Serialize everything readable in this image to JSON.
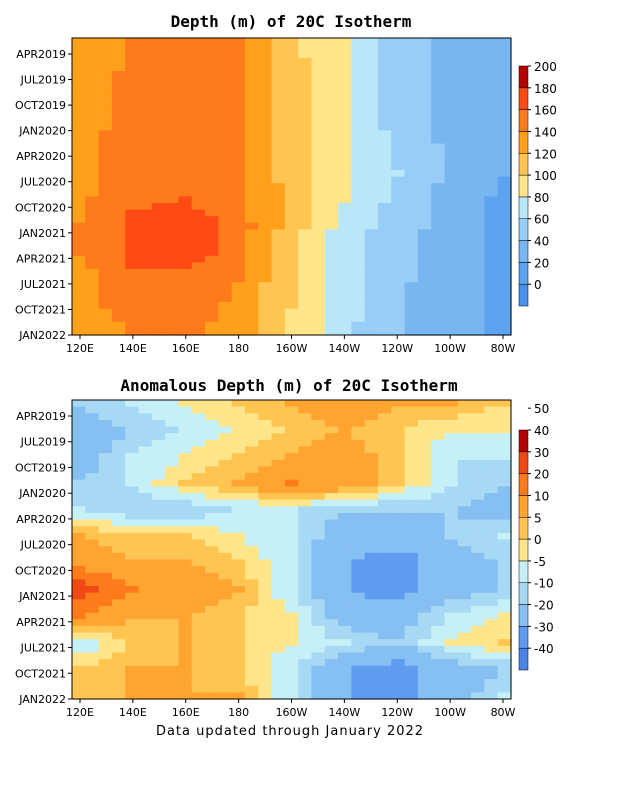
{
  "palette": {
    "top": [
      "#4a90e8",
      "#5ea3f0",
      "#78b6f2",
      "#98cdf7",
      "#b8e8f8",
      "#ffe58a",
      "#ffc550",
      "#ff9f1a",
      "#ff7a1a",
      "#ff4a14",
      "#b60000"
    ],
    "bottom": [
      "#4a84e6",
      "#5f9bee",
      "#86bff2",
      "#a7d9f5",
      "#c6f0f8",
      "#ffe58a",
      "#ffc550",
      "#ffa430",
      "#ff7a1a",
      "#f04a14",
      "#b60000"
    ]
  },
  "chart_data": [
    {
      "type": "heatmap",
      "title": "Depth (m) of 20C Isotherm",
      "x_ticks": [
        "120E",
        "140E",
        "160E",
        "180",
        "160W",
        "140W",
        "120W",
        "100W",
        "80W"
      ],
      "y_ticks": [
        "APR2019",
        "JUL2019",
        "OCT2019",
        "JAN2020",
        "APR2020",
        "JUL2020",
        "OCT2020",
        "JAN2021",
        "APR2021",
        "JUL2021",
        "OCT2021",
        "JAN2022"
      ],
      "colorbar_labels": [
        "0",
        "20",
        "40",
        "60",
        "80",
        "100",
        "120",
        "140",
        "160",
        "180",
        "200"
      ],
      "levels": [
        0,
        20,
        40,
        60,
        80,
        100,
        120,
        140,
        160,
        180,
        200
      ],
      "x": [
        120,
        140,
        160,
        180,
        200,
        220,
        240,
        260,
        280
      ],
      "grid": [
        [
          140,
          160,
          165,
          160,
          120,
          100,
          70,
          55,
          45
        ],
        [
          140,
          165,
          170,
          165,
          130,
          100,
          70,
          55,
          45
        ],
        [
          145,
          170,
          175,
          165,
          130,
          100,
          70,
          50,
          40
        ],
        [
          150,
          165,
          170,
          165,
          130,
          100,
          70,
          55,
          40
        ],
        [
          150,
          175,
          175,
          160,
          130,
          105,
          75,
          55,
          40
        ],
        [
          150,
          175,
          175,
          160,
          130,
          105,
          80,
          55,
          40
        ],
        [
          155,
          175,
          180,
          165,
          135,
          100,
          75,
          50,
          35
        ],
        [
          160,
          185,
          195,
          170,
          130,
          90,
          70,
          50,
          35
        ],
        [
          160,
          185,
          190,
          170,
          125,
          90,
          65,
          45,
          35
        ],
        [
          150,
          175,
          175,
          160,
          120,
          90,
          65,
          45,
          35
        ],
        [
          150,
          170,
          170,
          155,
          120,
          90,
          60,
          45,
          35
        ],
        [
          140,
          160,
          165,
          150,
          115,
          85,
          60,
          45,
          35
        ]
      ]
    },
    {
      "type": "heatmap",
      "title": "Anomalous Depth (m) of 20C Isotherm",
      "x_ticks": [
        "120E",
        "140E",
        "160E",
        "180",
        "160W",
        "140W",
        "120W",
        "100W",
        "80W"
      ],
      "y_ticks": [
        "APR2019",
        "JUL2019",
        "OCT2019",
        "JAN2020",
        "APR2020",
        "JUL2020",
        "OCT2020",
        "JAN2021",
        "APR2021",
        "JUL2021",
        "OCT2021",
        "JAN2022"
      ],
      "colorbar_labels": [
        "-40",
        "-30",
        "-20",
        "-10",
        "-5",
        "0",
        "5",
        "10",
        "20",
        "30",
        "40",
        "50"
      ],
      "levels": [
        -40,
        -30,
        -20,
        -10,
        -5,
        0,
        5,
        10,
        20,
        30,
        40,
        50
      ],
      "x": [
        120,
        140,
        160,
        180,
        200,
        220,
        240,
        260,
        280
      ],
      "grid": [
        [
          -10,
          -5,
          0,
          5,
          10,
          15,
          10,
          10,
          5
        ],
        [
          -15,
          -10,
          -5,
          0,
          5,
          10,
          5,
          0,
          0
        ],
        [
          -15,
          -5,
          0,
          5,
          10,
          15,
          5,
          -5,
          -5
        ],
        [
          -10,
          -5,
          5,
          10,
          20,
          15,
          5,
          -5,
          -10
        ],
        [
          -5,
          -10,
          -10,
          -5,
          -5,
          -10,
          -10,
          -10,
          -15
        ],
        [
          10,
          5,
          5,
          0,
          -5,
          -15,
          -15,
          -10,
          -5
        ],
        [
          15,
          10,
          10,
          5,
          -5,
          -20,
          -25,
          -15,
          -10
        ],
        [
          35,
          20,
          15,
          10,
          -5,
          -20,
          -25,
          -15,
          -10
        ],
        [
          20,
          10,
          10,
          5,
          0,
          -15,
          -15,
          -5,
          0
        ],
        [
          -5,
          5,
          10,
          5,
          0,
          -5,
          -10,
          0,
          5
        ],
        [
          5,
          10,
          10,
          5,
          -5,
          -20,
          -25,
          -15,
          -10
        ],
        [
          5,
          10,
          10,
          10,
          -5,
          -20,
          -25,
          -15,
          -5
        ]
      ]
    }
  ],
  "footer": "Data updated through January 2022"
}
